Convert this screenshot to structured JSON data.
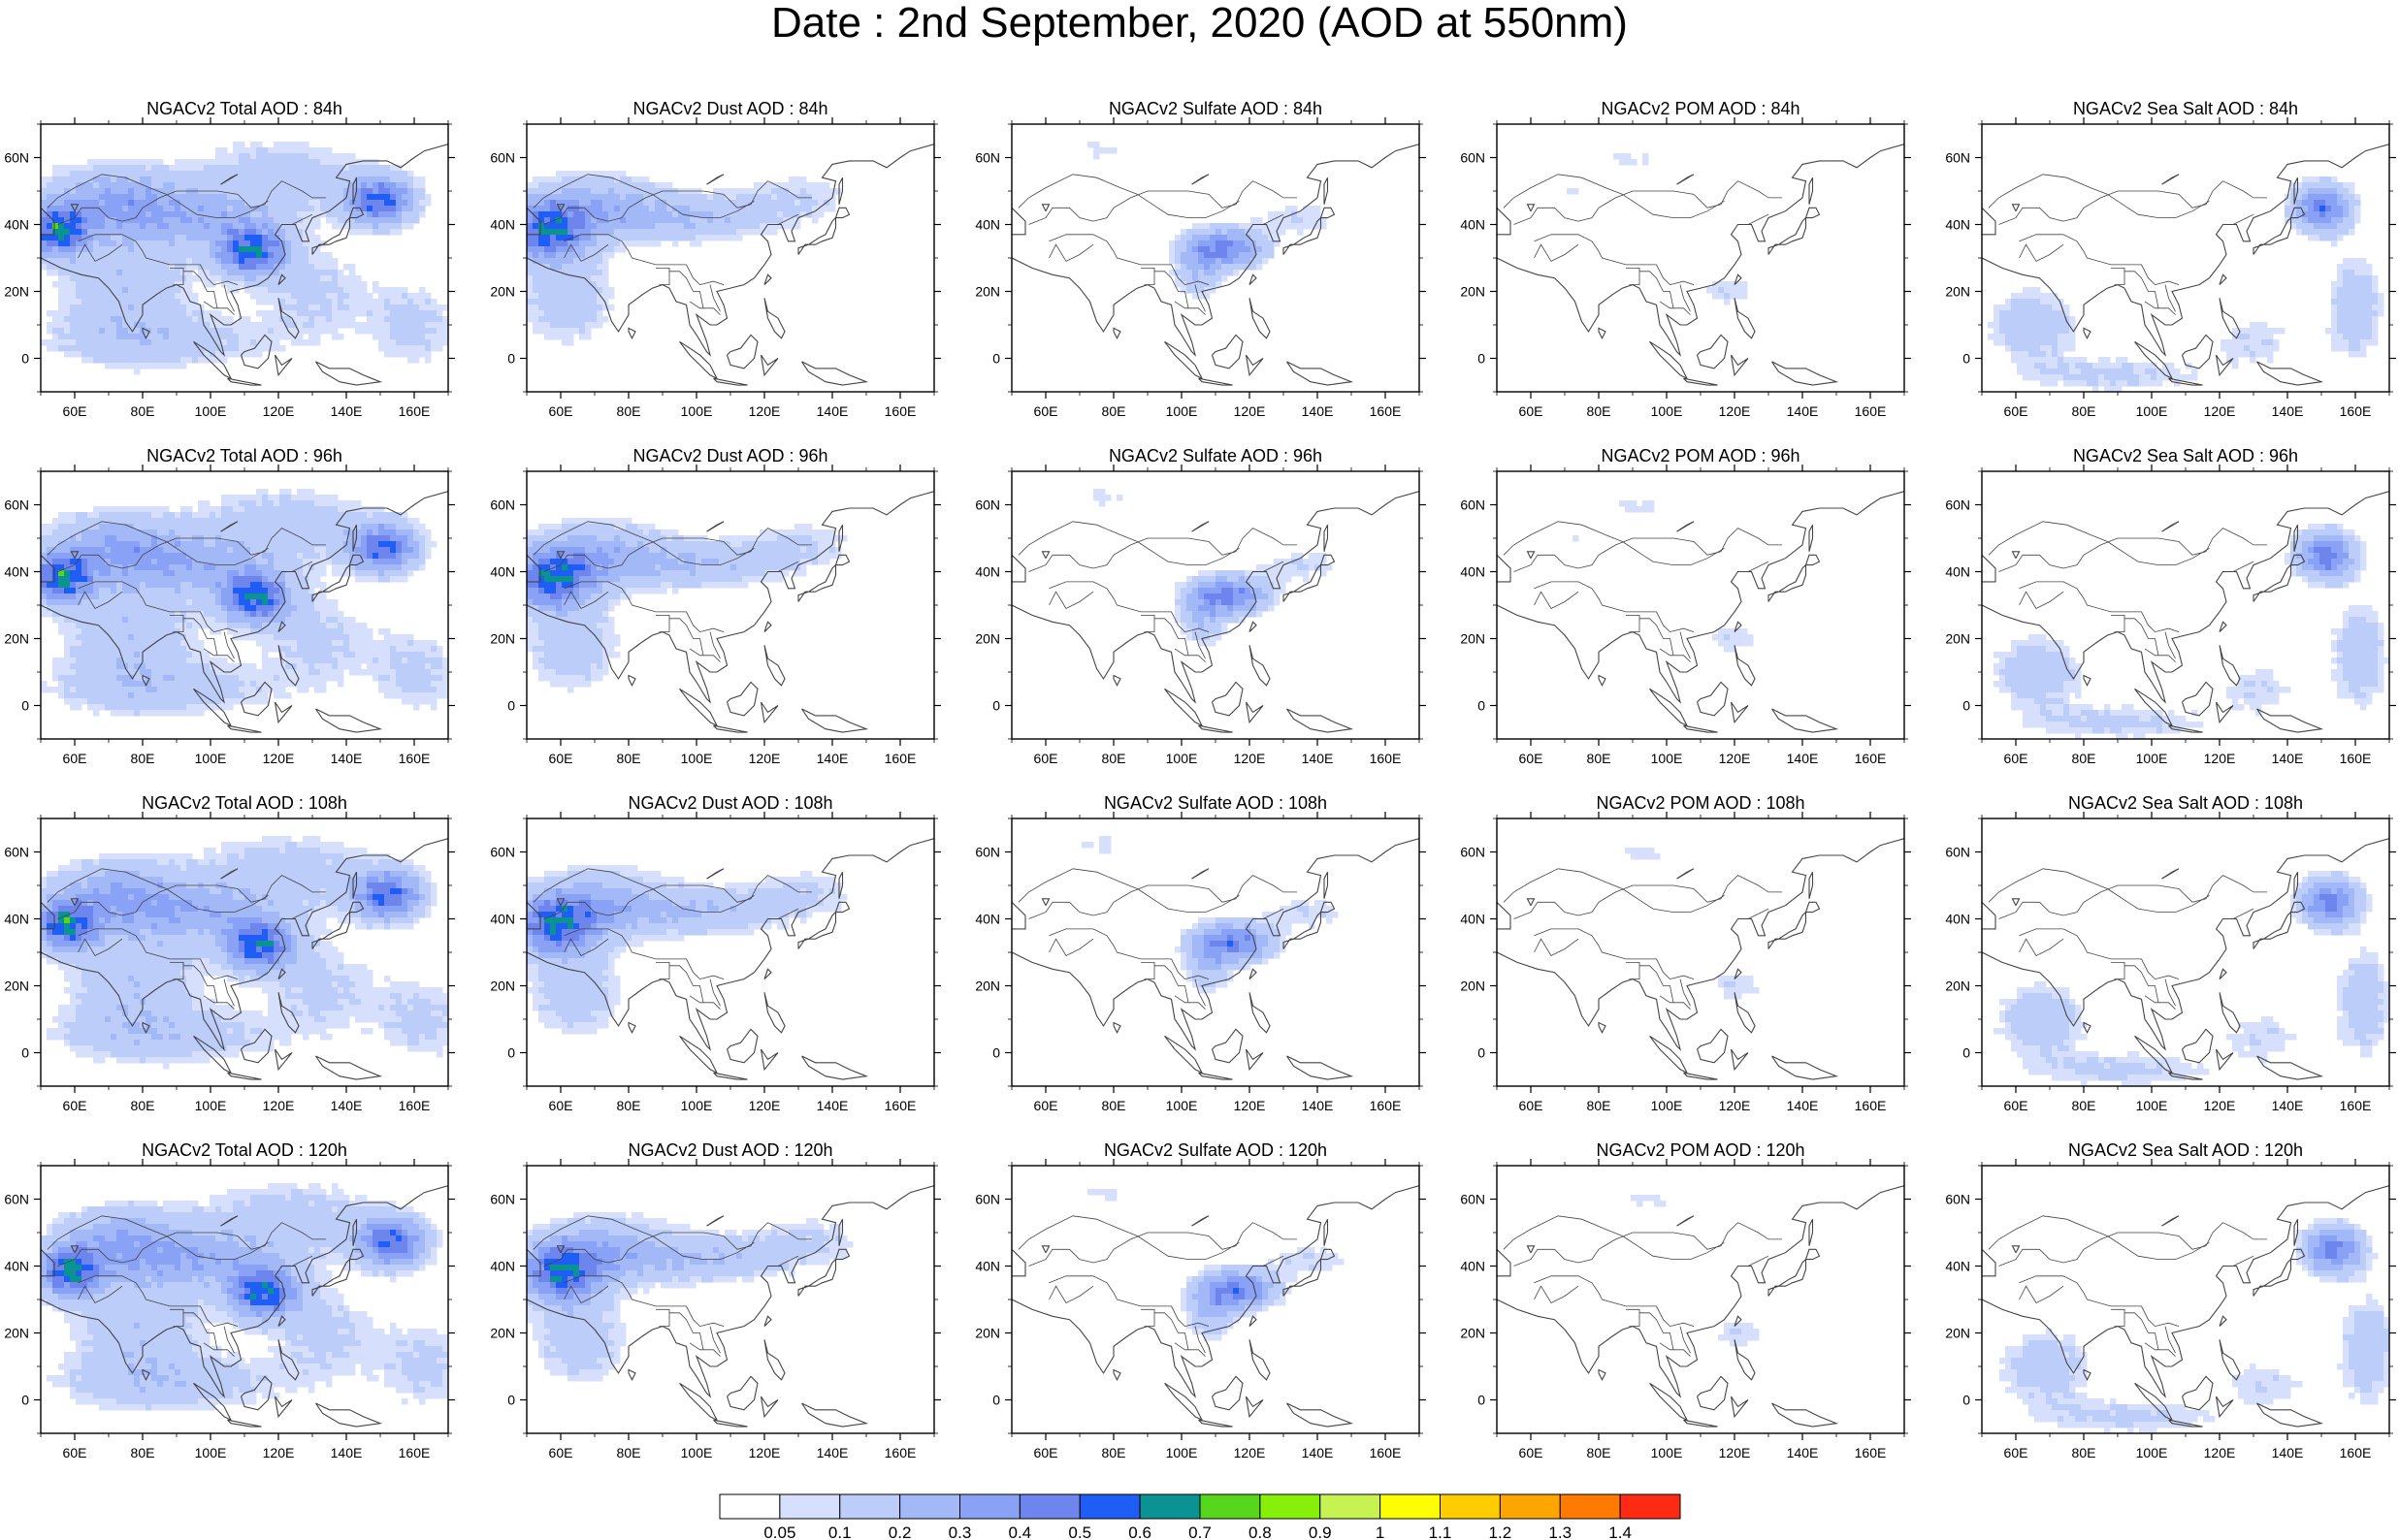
{
  "title": "Date : 2nd September, 2020 (AOD at 550nm)",
  "axes": {
    "x_ticks": [
      "60E",
      "80E",
      "100E",
      "120E",
      "140E",
      "160E"
    ],
    "x_tick_values": [
      60,
      80,
      100,
      120,
      140,
      160
    ],
    "y_ticks": [
      "60N",
      "40N",
      "20N",
      "0"
    ],
    "y_tick_values": [
      60,
      40,
      20,
      0
    ],
    "lon_range": [
      50,
      170
    ],
    "lat_range": [
      -10,
      70
    ]
  },
  "panels": [
    {
      "title": "NGACv2 Total AOD : 84h",
      "species": "total",
      "lead": 84
    },
    {
      "title": "NGACv2 Dust AOD : 84h",
      "species": "dust",
      "lead": 84
    },
    {
      "title": "NGACv2 Sulfate AOD : 84h",
      "species": "sulfate",
      "lead": 84
    },
    {
      "title": "NGACv2 POM AOD : 84h",
      "species": "pom",
      "lead": 84
    },
    {
      "title": "NGACv2 Sea Salt AOD : 84h",
      "species": "seasalt",
      "lead": 84
    },
    {
      "title": "NGACv2 Total AOD : 96h",
      "species": "total",
      "lead": 96
    },
    {
      "title": "NGACv2 Dust AOD : 96h",
      "species": "dust",
      "lead": 96
    },
    {
      "title": "NGACv2 Sulfate AOD : 96h",
      "species": "sulfate",
      "lead": 96
    },
    {
      "title": "NGACv2 POM AOD : 96h",
      "species": "pom",
      "lead": 96
    },
    {
      "title": "NGACv2 Sea Salt AOD : 96h",
      "species": "seasalt",
      "lead": 96
    },
    {
      "title": "NGACv2 Total AOD : 108h",
      "species": "total",
      "lead": 108
    },
    {
      "title": "NGACv2 Dust AOD : 108h",
      "species": "dust",
      "lead": 108
    },
    {
      "title": "NGACv2 Sulfate AOD : 108h",
      "species": "sulfate",
      "lead": 108
    },
    {
      "title": "NGACv2 POM AOD : 108h",
      "species": "pom",
      "lead": 108
    },
    {
      "title": "NGACv2 Sea Salt AOD : 108h",
      "species": "seasalt",
      "lead": 108
    },
    {
      "title": "NGACv2 Total AOD : 120h",
      "species": "total",
      "lead": 120
    },
    {
      "title": "NGACv2 Dust AOD : 120h",
      "species": "dust",
      "lead": 120
    },
    {
      "title": "NGACv2 Sulfate AOD : 120h",
      "species": "sulfate",
      "lead": 120
    },
    {
      "title": "NGACv2 POM AOD : 120h",
      "species": "pom",
      "lead": 120
    },
    {
      "title": "NGACv2 Sea Salt  AOD : 120h",
      "species": "seasalt",
      "lead": 120
    }
  ],
  "colorbar": {
    "labels": [
      "0.05",
      "0.1",
      "0.2",
      "0.3",
      "0.4",
      "0.5",
      "0.6",
      "0.7",
      "0.8",
      "0.9",
      "1",
      "1.1",
      "1.2",
      "1.3",
      "1.4"
    ],
    "colors": [
      "#ffffff",
      "#d6e0fc",
      "#bccdfa",
      "#a3b8f7",
      "#8aa2f5",
      "#6e85ee",
      "#1f5ef5",
      "#0b9393",
      "#56d61c",
      "#86f00a",
      "#c7f352",
      "#ffff00",
      "#ffcc00",
      "#ffa500",
      "#ff7a00",
      "#ff2a14"
    ]
  },
  "colors": {
    "coast_line": "#444444",
    "frame": "#000000"
  }
}
